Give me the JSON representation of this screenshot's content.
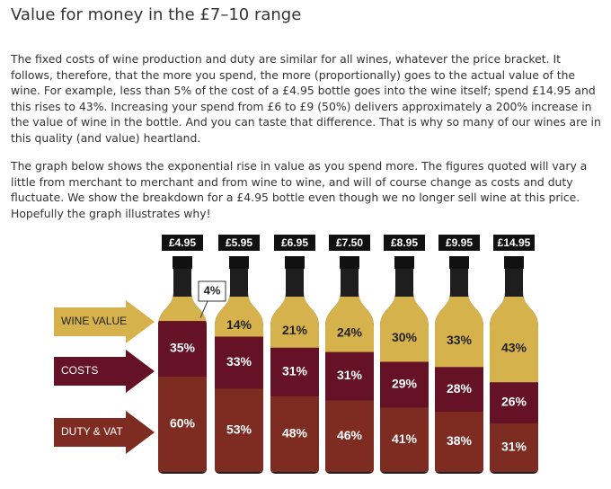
{
  "title": "Value for money in the £7–10 range",
  "paragraphs": [
    "The fixed costs of wine production and duty are similar for all wines, whatever the price bracket. It follows, therefore, that the more you spend, the more (proportionally) goes to the actual value of the wine. For example, less than 5% of the cost of a £4.95 bottle goes into the wine itself; spend £14.95 and this rises to 43%. Increasing your spend from £6 to £9 (50%) delivers approximately a 200% increase in the value of wine in the bottle. And you can taste that difference. That is why so many of our wines are in this quality (and value) heartland.",
    "The graph below shows the exponential rise in value as you spend more. The figures quoted will vary a little from merchant to merchant and from wine to wine, and will of course change as costs and duty fluctuate. We show the breakdown for a £4.95 bottle even though we no longer sell wine at this price. Hopefully the graph illustrates why!"
  ],
  "chart_data": {
    "type": "stacked_bottle",
    "categories": [
      "£4.95",
      "£5.95",
      "£6.95",
      "£7.50",
      "£8.95",
      "£9.95",
      "£14.95"
    ],
    "series": [
      {
        "name": "DUTY & VAT",
        "color": "#7e2c22",
        "values": [
          60,
          53,
          48,
          46,
          41,
          38,
          31
        ],
        "value_labels": [
          "60%",
          "53%",
          "48%",
          "46%",
          "41%",
          "38%",
          "31%"
        ]
      },
      {
        "name": "COSTS",
        "color": "#661226",
        "values": [
          35,
          33,
          31,
          31,
          29,
          28,
          26
        ],
        "value_labels": [
          "35%",
          "33%",
          "31%",
          "31%",
          "29%",
          "28%",
          "26%"
        ]
      },
      {
        "name": "WINE VALUE",
        "color": "#d6b24c",
        "values": [
          4,
          14,
          21,
          24,
          30,
          33,
          43
        ],
        "value_labels": [
          "4%",
          "14%",
          "21%",
          "24%",
          "30%",
          "33%",
          "43%"
        ]
      }
    ]
  }
}
